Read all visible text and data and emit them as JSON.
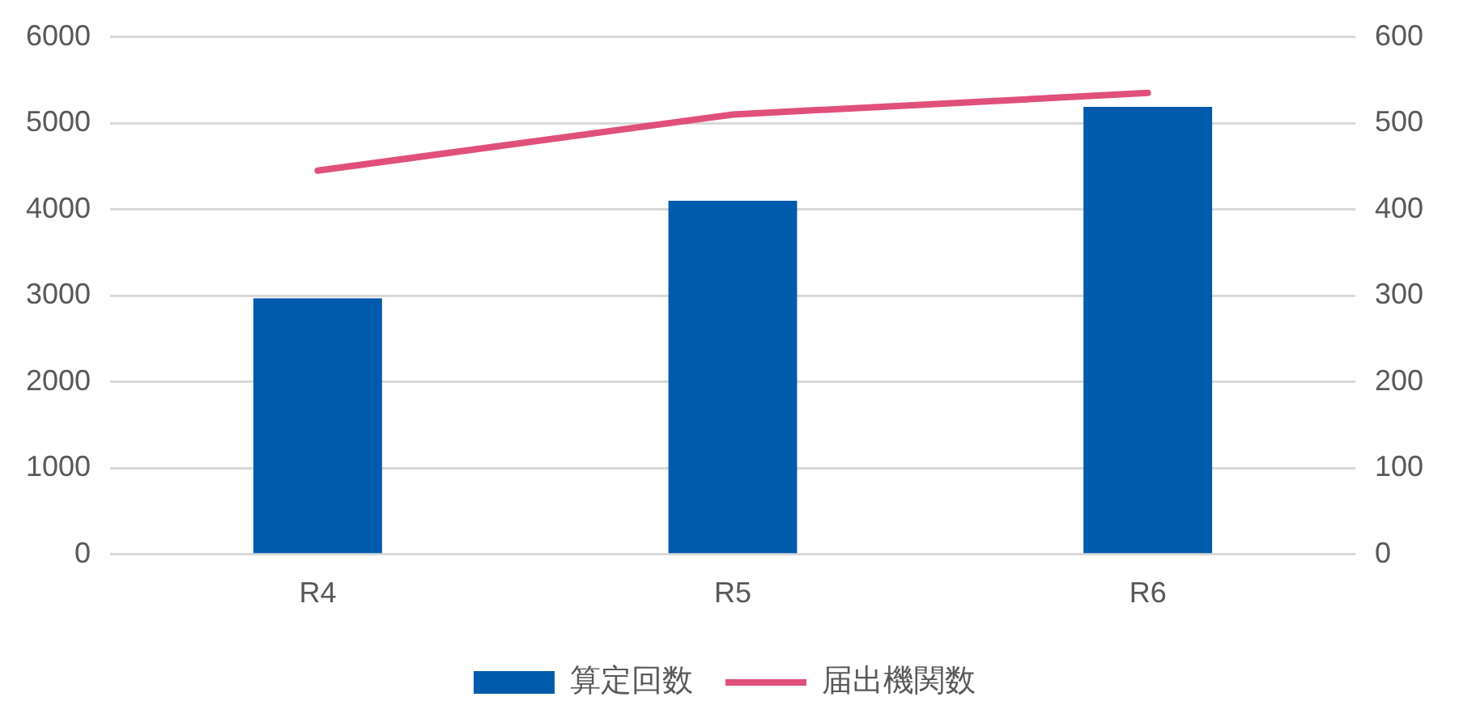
{
  "chart_data": {
    "type": "bar",
    "categories": [
      "R4",
      "R5",
      "R6"
    ],
    "series": [
      {
        "name": "算定回数",
        "color": "#005bac",
        "values": [
          2970,
          4100,
          5190
        ]
      },
      {
        "name": "届出機関数",
        "type": "line",
        "axis": "y2",
        "color": "#e0507a",
        "values": [
          445,
          510,
          535
        ]
      }
    ],
    "ylim": [
      0,
      6000
    ],
    "yticks": [
      0,
      1000,
      2000,
      3000,
      4000,
      5000,
      6000
    ],
    "y2lim": [
      0,
      600
    ],
    "y2ticks": [
      0,
      100,
      200,
      300,
      400,
      500,
      600
    ],
    "grid": "y",
    "legend": "bottom",
    "marker": "none",
    "line_style": "solid"
  }
}
